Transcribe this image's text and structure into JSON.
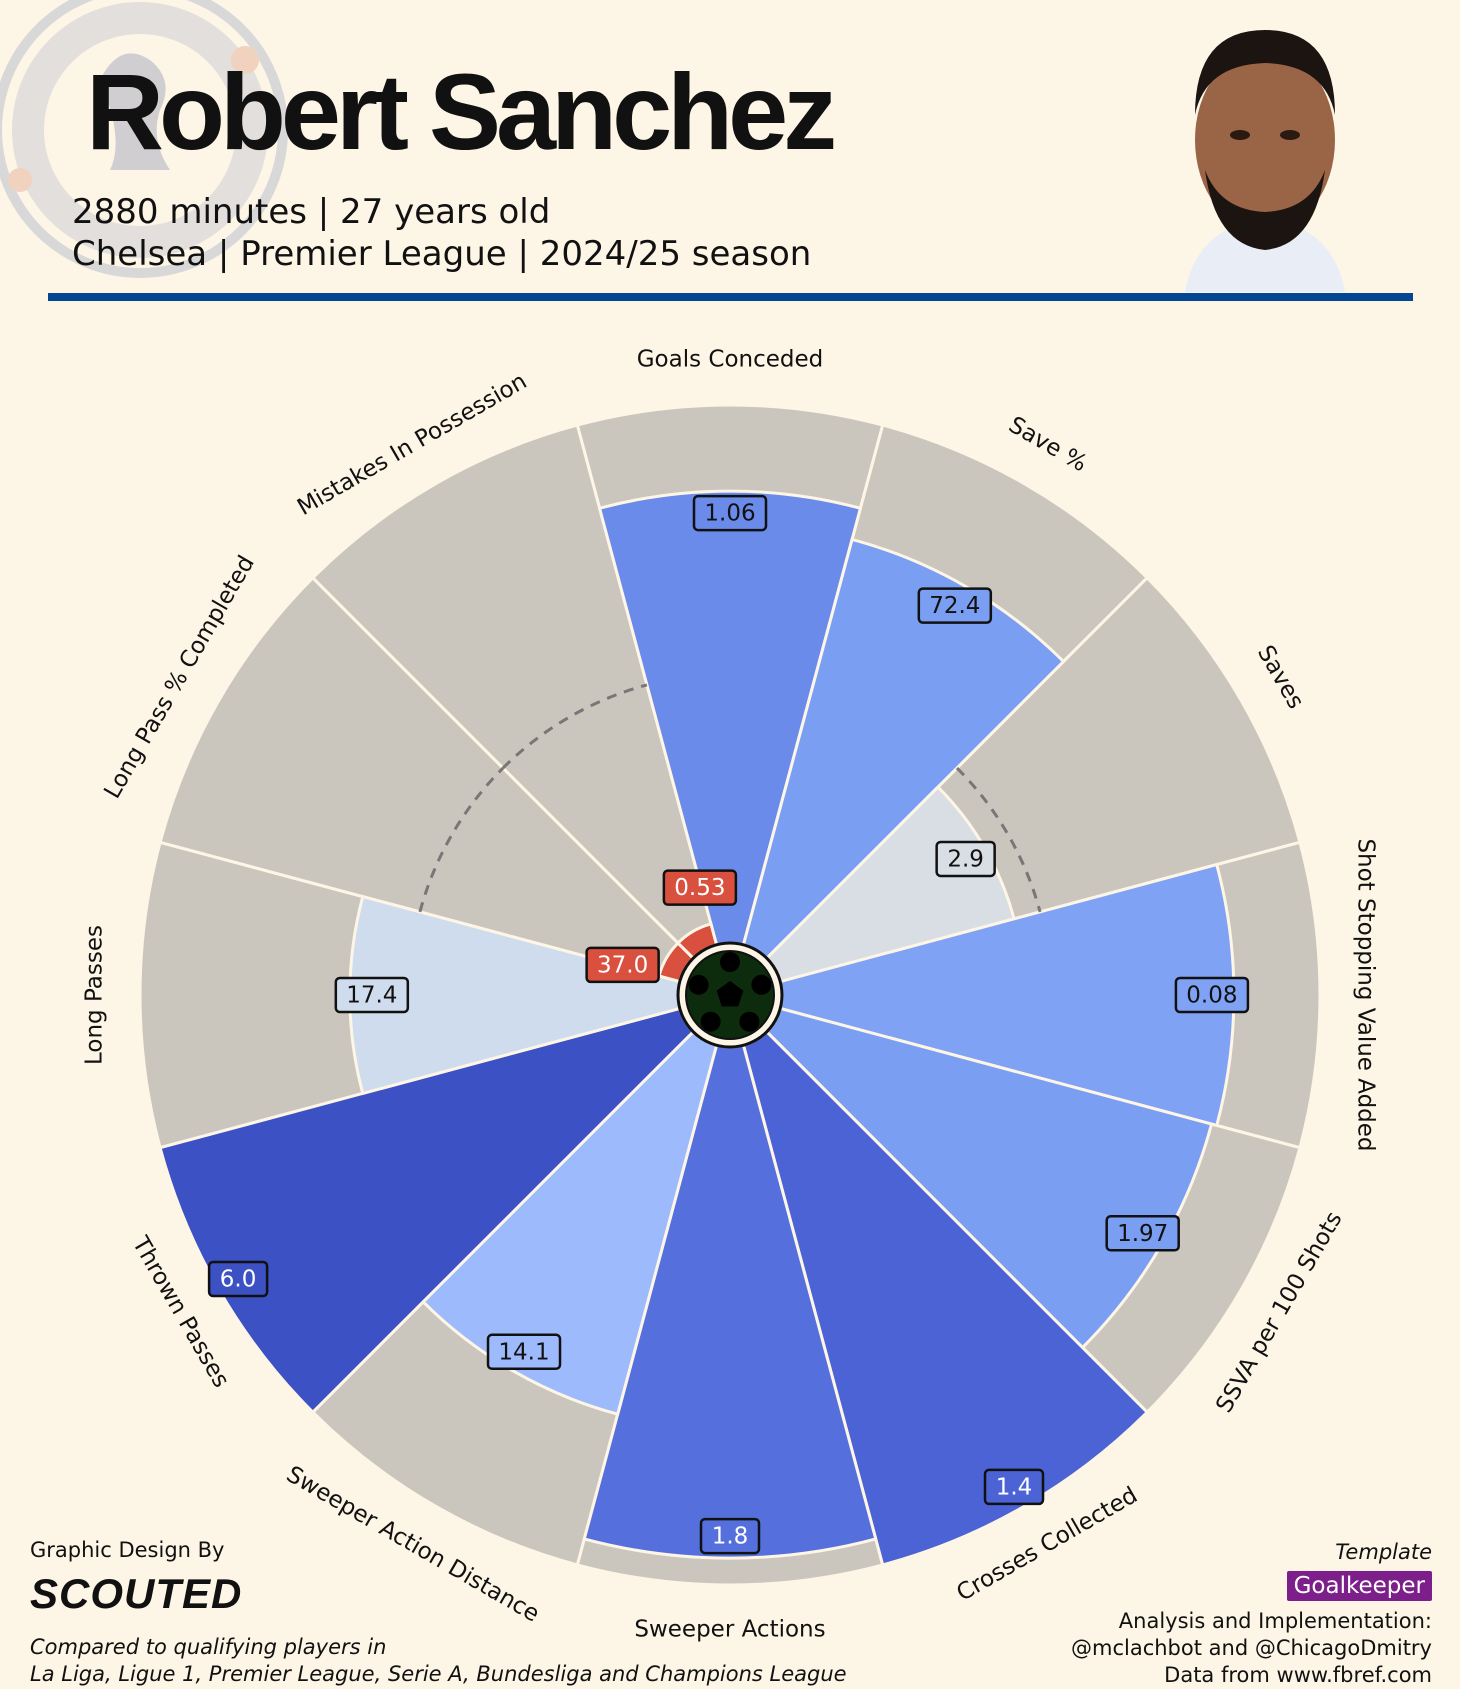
{
  "header": {
    "player_name": "Robert Sanchez",
    "subtitle_line1": "2880 minutes | 27 years old",
    "subtitle_line2": "Chelsea | Premier League | 2024/25 season"
  },
  "footer": {
    "credit_by": "Graphic Design By",
    "credit_logo": "SCOUTED",
    "compared_line1": "Compared to qualifying players in",
    "compared_line2": "La Liga, Ligue 1, Premier League, Serie A, Bundesliga and Champions League",
    "template_label": "Template",
    "template_name": "Goalkeeper",
    "analysis_line1": "Analysis and Implementation:",
    "analysis_line2": "@mclachbot and @ChicagoDmitry",
    "analysis_line3": "Data from www.fbref.com"
  },
  "colors": {
    "background": "#fdf5e6",
    "slice_background": "#cbc6bd",
    "header_rule": "#034694",
    "low_value": "#d9503f",
    "template_badge": "#7d1f8a"
  },
  "icons": [
    "chelsea-badge-icon",
    "soccer-ball-icon",
    "player-portrait"
  ],
  "chart_data": {
    "type": "pizza",
    "value_scale": "percentile",
    "reference_ring_percentile": 50,
    "metrics": [
      {
        "name": "Goals Conceded",
        "value": "1.06",
        "percentile": 84,
        "color": "#6a8bea"
      },
      {
        "name": "Save %",
        "value": "72.4",
        "percentile": 78,
        "color": "#7a9ef2"
      },
      {
        "name": "Saves",
        "value": "2.9",
        "percentile": 45,
        "color": "#d9dee5"
      },
      {
        "name": "Shot Stopping Value Added",
        "value": "0.08",
        "percentile": 84,
        "color": "#80a2f5"
      },
      {
        "name": "SSVA per 100 Shots",
        "value": "1.97",
        "percentile": 83,
        "color": "#7a9ef2"
      },
      {
        "name": "Crosses Collected",
        "value": "1.4",
        "percentile": 100,
        "color": "#4b63d4"
      },
      {
        "name": "Sweeper Actions",
        "value": "1.8",
        "percentile": 95,
        "color": "#5570dc"
      },
      {
        "name": "Sweeper Action Distance",
        "value": "14.1",
        "percentile": 71,
        "color": "#9dbbfc"
      },
      {
        "name": "Thrown Passes",
        "value": "6.0",
        "percentile": 100,
        "color": "#3c51c4"
      },
      {
        "name": "Long Passes",
        "value": "17.4",
        "percentile": 61,
        "color": "#cfdcee"
      },
      {
        "name": "Long Pass % Completed",
        "value": "37.0",
        "percentile": 4,
        "color": "#d9503f"
      },
      {
        "name": "Mistakes In Possession",
        "value": "0.53",
        "percentile": 4,
        "color": "#d9503f"
      }
    ]
  }
}
